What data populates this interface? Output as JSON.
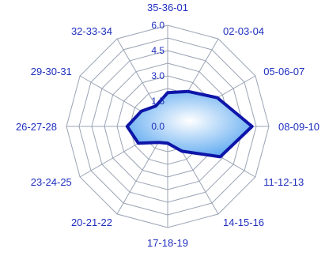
{
  "chart_data": {
    "type": "radar",
    "categories": [
      "35-36-01",
      "02-03-04",
      "05-06-07",
      "08-09-10",
      "11-12-13",
      "14-15-16",
      "17-18-19",
      "20-21-22",
      "23-24-25",
      "26-27-28",
      "29-30-31",
      "32-33-34"
    ],
    "series": [
      {
        "values": [
          2.0,
          2.4,
          3.4,
          5.0,
          3.6,
          1.7,
          1.0,
          1.1,
          2.0,
          2.4,
          1.8,
          1.4
        ]
      }
    ],
    "rlim": [
      0,
      6
    ],
    "ticks": [
      "0.0",
      "1.5",
      "3.0",
      "4.5",
      "6.0"
    ],
    "tick_values": [
      0,
      1.5,
      3.0,
      4.5,
      6.0
    ],
    "grid": true,
    "legend": "none",
    "colors": {
      "grid": "#9aa3b4",
      "label": "#1f2fbf",
      "series_stroke": "#0e15a8",
      "fill_light": "#ffffff",
      "fill_dark": "#5aa7f0"
    }
  }
}
